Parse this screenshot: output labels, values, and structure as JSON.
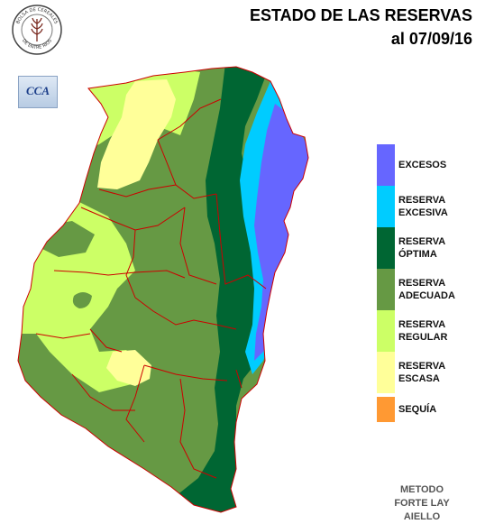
{
  "title": {
    "line1": "ESTADO DE LAS RESERVAS",
    "line2": "al 07/09/16"
  },
  "logo": {
    "text_top": "BOLSA DE CEREALES",
    "text_bottom": "DE ENTRE RIOS"
  },
  "cca_badge": {
    "label": "CCA"
  },
  "legend": [
    {
      "label_line1": "EXCESOS",
      "label_line2": "",
      "color": "#6666ff"
    },
    {
      "label_line1": "RESERVA",
      "label_line2": "EXCESIVA",
      "color": "#00ccff"
    },
    {
      "label_line1": "RESERVA",
      "label_line2": "ÓPTIMA",
      "color": "#006633"
    },
    {
      "label_line1": "RESERVA",
      "label_line2": "ADECUADA",
      "color": "#669944"
    },
    {
      "label_line1": "RESERVA",
      "label_line2": "REGULAR",
      "color": "#ccff66"
    },
    {
      "label_line1": "RESERVA",
      "label_line2": "ESCASA",
      "color": "#ffff99"
    },
    {
      "label_line1": "SEQUÍA",
      "label_line2": "",
      "color": "#ff9933"
    }
  ],
  "method": {
    "line1": "METODO",
    "line2": "FORTE LAY",
    "line3": "AIELLO"
  },
  "map_colors": {
    "province_fill": "#669944",
    "boundary": "#cc0000",
    "escasa": "#ffff99",
    "regular": "#ccff66",
    "adecuada": "#669944",
    "optima": "#006633",
    "excesiva": "#00ccff",
    "excesos": "#6666ff"
  }
}
